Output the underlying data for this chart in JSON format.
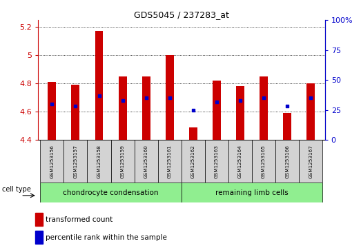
{
  "title": "GDS5045 / 237283_at",
  "samples": [
    "GSM1253156",
    "GSM1253157",
    "GSM1253158",
    "GSM1253159",
    "GSM1253160",
    "GSM1253161",
    "GSM1253162",
    "GSM1253163",
    "GSM1253164",
    "GSM1253165",
    "GSM1253166",
    "GSM1253167"
  ],
  "transformed_count": [
    4.81,
    4.79,
    5.17,
    4.85,
    4.85,
    5.0,
    4.49,
    4.82,
    4.78,
    4.85,
    4.59,
    4.8
  ],
  "percentile_rank": [
    30,
    28,
    37,
    33,
    35,
    35,
    25,
    32,
    33,
    35,
    28,
    35
  ],
  "ylim_left": [
    4.4,
    5.25
  ],
  "ylim_right": [
    0,
    100
  ],
  "yticks_left": [
    4.4,
    4.6,
    4.8,
    5.0,
    5.2
  ],
  "yticks_right": [
    0,
    25,
    50,
    75,
    100
  ],
  "bar_color": "#cc0000",
  "dot_color": "#0000cc",
  "axis_color_left": "#cc0000",
  "axis_color_right": "#0000cc",
  "group1_label": "chondrocyte condensation",
  "group2_label": "remaining limb cells",
  "group1_color": "#90ee90",
  "group2_color": "#90ee90",
  "group1_indices": [
    0,
    1,
    2,
    3,
    4,
    5
  ],
  "group2_indices": [
    6,
    7,
    8,
    9,
    10,
    11
  ],
  "cell_type_label": "cell type",
  "legend1": "transformed count",
  "legend2": "percentile rank within the sample",
  "bar_bottom": 4.4,
  "bar_width": 0.35,
  "dot_size": 12,
  "label_box_color": "#d3d3d3"
}
